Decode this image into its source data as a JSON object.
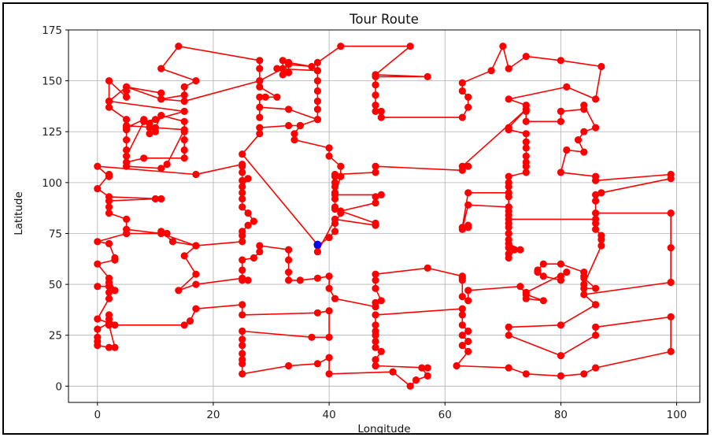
{
  "chart_data": {
    "type": "line",
    "title": "Tour Route",
    "xlabel": "Longitude",
    "ylabel": "Latitude",
    "xlim": [
      -5,
      104
    ],
    "ylim": [
      -8,
      175
    ],
    "xticks": [
      0,
      20,
      40,
      60,
      80,
      100
    ],
    "yticks": [
      0,
      25,
      50,
      75,
      100,
      125,
      150,
      175
    ],
    "grid": true,
    "route_color": "#ff0000",
    "start_color": "#0000ff",
    "start": [
      38,
      69.5
    ],
    "route": [
      [
        38,
        69.5
      ],
      [
        25,
        114
      ],
      [
        28,
        124
      ],
      [
        28,
        127
      ],
      [
        33,
        128
      ],
      [
        35,
        128
      ],
      [
        38,
        131
      ],
      [
        38,
        136
      ],
      [
        38,
        140
      ],
      [
        38,
        145
      ],
      [
        38,
        150
      ],
      [
        38,
        155
      ],
      [
        38,
        159
      ],
      [
        42,
        167
      ],
      [
        54,
        167
      ],
      [
        48,
        153
      ],
      [
        57,
        152
      ],
      [
        48,
        152
      ],
      [
        48,
        148
      ],
      [
        48,
        143
      ],
      [
        48,
        138
      ],
      [
        48,
        135
      ],
      [
        49,
        135
      ],
      [
        49,
        132
      ],
      [
        63,
        132
      ],
      [
        64,
        137
      ],
      [
        64,
        142
      ],
      [
        63,
        145
      ],
      [
        63,
        149
      ],
      [
        68,
        155
      ],
      [
        70,
        167
      ],
      [
        71,
        156
      ],
      [
        74,
        162
      ],
      [
        80,
        160
      ],
      [
        87,
        157
      ],
      [
        86,
        141
      ],
      [
        81,
        147
      ],
      [
        71,
        141
      ],
      [
        74,
        138
      ],
      [
        74,
        135
      ],
      [
        74,
        130
      ],
      [
        80,
        130
      ],
      [
        80,
        135
      ],
      [
        84,
        136
      ],
      [
        84,
        138
      ],
      [
        86,
        127
      ],
      [
        84,
        125
      ],
      [
        83,
        121
      ],
      [
        84,
        115
      ],
      [
        81,
        116
      ],
      [
        80,
        105
      ],
      [
        86,
        103
      ],
      [
        86,
        101
      ],
      [
        99,
        104
      ],
      [
        99,
        102
      ],
      [
        87,
        95
      ],
      [
        86,
        94
      ],
      [
        86,
        91
      ],
      [
        86,
        85
      ],
      [
        99,
        85
      ],
      [
        99,
        68
      ],
      [
        99,
        51
      ],
      [
        84,
        45
      ],
      [
        86,
        40
      ],
      [
        86,
        40
      ],
      [
        80,
        30
      ],
      [
        71,
        29
      ],
      [
        71,
        25
      ],
      [
        80,
        15
      ],
      [
        86,
        25
      ],
      [
        86,
        29
      ],
      [
        99,
        34
      ],
      [
        99,
        17
      ],
      [
        86,
        9
      ],
      [
        84,
        6
      ],
      [
        80,
        5
      ],
      [
        74,
        6
      ],
      [
        71,
        9
      ],
      [
        62,
        10
      ],
      [
        64,
        17
      ],
      [
        63,
        20
      ],
      [
        64,
        22
      ],
      [
        63,
        25
      ],
      [
        64,
        27
      ],
      [
        63,
        30
      ],
      [
        63,
        35
      ],
      [
        63,
        38
      ],
      [
        48,
        35
      ],
      [
        48,
        30
      ],
      [
        48,
        27
      ],
      [
        48,
        25
      ],
      [
        48,
        22
      ],
      [
        48,
        19
      ],
      [
        49,
        17
      ],
      [
        48,
        13
      ],
      [
        48,
        10
      ],
      [
        57,
        9
      ],
      [
        56,
        9
      ],
      [
        57,
        5
      ],
      [
        55,
        3
      ],
      [
        54,
        0
      ],
      [
        51,
        7
      ],
      [
        40,
        6
      ],
      [
        40,
        14
      ],
      [
        38,
        11
      ],
      [
        33,
        10
      ],
      [
        25,
        6
      ],
      [
        25,
        11
      ],
      [
        25,
        13
      ],
      [
        25,
        16
      ],
      [
        25,
        20
      ],
      [
        25,
        23
      ],
      [
        25,
        27
      ],
      [
        37,
        24
      ],
      [
        40,
        24
      ],
      [
        40,
        37
      ],
      [
        38,
        36
      ],
      [
        25,
        35
      ],
      [
        25,
        40
      ],
      [
        17,
        38
      ],
      [
        16,
        32
      ],
      [
        15,
        30
      ],
      [
        2,
        30
      ],
      [
        3,
        30
      ],
      [
        2,
        33
      ],
      [
        2,
        35
      ],
      [
        2,
        30
      ],
      [
        3,
        19
      ],
      [
        2,
        19
      ],
      [
        0,
        20
      ],
      [
        0,
        22
      ],
      [
        0,
        24
      ],
      [
        0,
        28
      ],
      [
        2,
        31
      ],
      [
        0,
        33
      ],
      [
        2,
        43
      ],
      [
        2,
        49
      ],
      [
        0,
        49
      ],
      [
        2,
        49
      ],
      [
        2,
        51
      ],
      [
        3,
        47
      ],
      [
        2,
        46
      ],
      [
        3,
        47
      ],
      [
        2,
        53
      ],
      [
        0,
        60
      ],
      [
        3,
        62
      ],
      [
        3,
        63
      ],
      [
        2,
        70
      ],
      [
        0,
        71
      ],
      [
        5,
        75
      ],
      [
        5,
        75
      ],
      [
        12,
        75
      ],
      [
        11,
        76
      ],
      [
        13,
        71
      ],
      [
        17,
        69
      ],
      [
        11,
        75
      ],
      [
        5,
        77
      ],
      [
        5,
        82
      ],
      [
        2,
        85
      ],
      [
        2,
        88
      ],
      [
        2,
        91
      ],
      [
        10,
        92
      ],
      [
        11,
        92
      ],
      [
        2,
        93
      ],
      [
        0,
        97
      ],
      [
        2,
        104
      ],
      [
        2,
        103
      ],
      [
        0,
        108
      ],
      [
        17,
        104
      ],
      [
        25,
        109
      ],
      [
        25,
        108
      ],
      [
        25,
        105
      ],
      [
        25,
        101
      ],
      [
        26,
        102
      ],
      [
        25,
        98
      ],
      [
        25,
        95
      ],
      [
        25,
        92
      ],
      [
        25,
        88
      ],
      [
        26,
        85
      ],
      [
        27,
        81
      ],
      [
        26,
        79
      ],
      [
        25,
        76
      ],
      [
        25,
        74
      ],
      [
        25,
        71
      ],
      [
        17,
        69
      ],
      [
        15,
        64
      ],
      [
        17,
        55
      ],
      [
        14,
        47
      ],
      [
        17,
        50
      ],
      [
        25,
        53
      ],
      [
        26,
        52
      ],
      [
        25,
        52
      ],
      [
        25,
        57
      ],
      [
        25,
        62
      ],
      [
        27,
        63
      ],
      [
        28,
        66
      ],
      [
        28,
        69
      ],
      [
        33,
        67
      ],
      [
        33,
        62
      ],
      [
        33,
        56
      ],
      [
        33,
        52
      ],
      [
        35,
        52
      ],
      [
        38,
        53
      ],
      [
        40,
        54
      ],
      [
        40,
        48
      ],
      [
        41,
        43
      ],
      [
        48,
        39
      ],
      [
        48,
        41
      ],
      [
        49,
        42
      ],
      [
        48,
        48
      ],
      [
        48,
        52
      ],
      [
        48,
        55
      ],
      [
        57,
        58
      ],
      [
        63,
        54
      ],
      [
        63,
        53
      ],
      [
        63,
        52
      ],
      [
        63,
        44
      ],
      [
        64,
        42
      ],
      [
        64,
        47
      ],
      [
        73,
        49
      ],
      [
        74,
        45
      ],
      [
        77,
        42
      ],
      [
        74,
        43
      ],
      [
        74,
        46
      ],
      [
        81,
        56
      ],
      [
        80,
        54
      ],
      [
        80,
        52
      ],
      [
        77,
        54
      ],
      [
        76,
        56
      ],
      [
        76,
        57
      ],
      [
        77,
        60
      ],
      [
        80,
        60
      ],
      [
        84,
        56
      ],
      [
        84,
        54
      ],
      [
        84,
        53
      ],
      [
        86,
        48
      ],
      [
        84,
        48
      ],
      [
        84,
        50
      ],
      [
        87,
        69
      ],
      [
        87,
        72
      ],
      [
        87,
        74
      ],
      [
        86,
        77
      ],
      [
        86,
        80
      ],
      [
        86,
        82
      ],
      [
        71,
        82
      ],
      [
        71,
        78
      ],
      [
        71,
        75
      ],
      [
        71,
        72
      ],
      [
        72,
        67
      ],
      [
        71,
        63
      ],
      [
        71,
        65
      ],
      [
        71,
        68
      ],
      [
        73,
        67
      ],
      [
        71,
        70
      ],
      [
        71,
        75
      ],
      [
        71,
        80
      ],
      [
        71,
        84
      ],
      [
        71,
        86
      ],
      [
        71,
        88
      ],
      [
        64,
        89
      ],
      [
        63,
        77
      ],
      [
        64,
        78
      ],
      [
        64,
        79
      ],
      [
        63,
        78
      ],
      [
        64,
        95
      ],
      [
        71,
        95
      ],
      [
        71,
        93
      ],
      [
        71,
        88
      ],
      [
        71,
        98
      ],
      [
        71,
        100
      ],
      [
        71,
        103
      ],
      [
        74,
        105
      ],
      [
        74,
        108
      ],
      [
        74,
        110
      ],
      [
        74,
        113
      ],
      [
        74,
        117
      ],
      [
        74,
        120
      ],
      [
        74,
        124
      ],
      [
        71,
        126
      ],
      [
        71,
        127
      ],
      [
        74,
        136
      ],
      [
        63,
        108
      ],
      [
        64,
        108
      ],
      [
        63,
        106
      ],
      [
        48,
        108
      ],
      [
        48,
        105
      ],
      [
        41,
        104
      ],
      [
        41,
        103
      ],
      [
        41,
        100
      ],
      [
        41,
        98
      ],
      [
        41,
        95
      ],
      [
        41,
        92
      ],
      [
        41,
        88
      ],
      [
        41,
        87
      ],
      [
        42,
        85
      ],
      [
        41,
        80
      ],
      [
        41,
        76
      ],
      [
        40,
        73
      ],
      [
        38,
        69
      ],
      [
        38,
        66
      ],
      [
        41,
        82
      ],
      [
        48,
        79
      ],
      [
        48,
        80
      ],
      [
        42,
        86
      ],
      [
        48,
        90
      ],
      [
        48,
        93
      ],
      [
        49,
        94
      ],
      [
        41,
        94
      ],
      [
        42,
        103
      ],
      [
        42,
        108
      ],
      [
        40,
        113
      ],
      [
        40,
        117
      ],
      [
        34,
        121
      ],
      [
        34,
        124
      ],
      [
        35,
        128
      ],
      [
        38,
        131
      ],
      [
        33,
        136
      ],
      [
        28,
        137
      ],
      [
        28,
        132
      ],
      [
        28,
        142
      ],
      [
        29,
        142
      ],
      [
        31,
        142
      ],
      [
        28,
        147
      ],
      [
        28,
        150
      ],
      [
        28,
        156
      ],
      [
        28,
        160
      ],
      [
        14,
        167
      ],
      [
        11,
        156
      ],
      [
        17,
        150
      ],
      [
        15,
        147
      ],
      [
        15,
        143
      ],
      [
        11,
        141
      ],
      [
        11,
        144
      ],
      [
        5,
        147
      ],
      [
        5,
        145
      ],
      [
        5,
        142
      ],
      [
        2,
        150
      ],
      [
        2,
        140
      ],
      [
        2,
        137
      ],
      [
        5,
        131
      ],
      [
        5,
        127
      ],
      [
        8,
        131
      ],
      [
        9,
        129
      ],
      [
        9,
        127
      ],
      [
        9,
        124
      ],
      [
        10,
        125
      ],
      [
        10,
        127
      ],
      [
        11,
        133
      ],
      [
        15,
        130
      ],
      [
        15,
        125
      ],
      [
        15,
        121
      ],
      [
        15,
        116
      ],
      [
        15,
        112
      ],
      [
        8,
        112
      ],
      [
        5,
        110
      ],
      [
        5,
        108
      ],
      [
        11,
        107
      ],
      [
        12,
        109
      ],
      [
        15,
        126
      ],
      [
        5,
        128
      ],
      [
        5,
        126
      ],
      [
        5,
        121
      ],
      [
        5,
        116
      ],
      [
        5,
        113
      ],
      [
        8,
        130
      ],
      [
        10,
        131
      ],
      [
        15,
        135
      ],
      [
        2,
        140
      ],
      [
        5,
        147
      ],
      [
        11,
        141
      ],
      [
        15,
        140
      ],
      [
        28,
        150
      ],
      [
        32,
        156
      ],
      [
        32,
        153
      ],
      [
        32,
        160
      ],
      [
        33,
        159
      ],
      [
        37,
        157
      ],
      [
        33,
        158
      ],
      [
        33,
        154
      ],
      [
        31,
        156
      ],
      [
        38,
        155
      ]
    ]
  }
}
